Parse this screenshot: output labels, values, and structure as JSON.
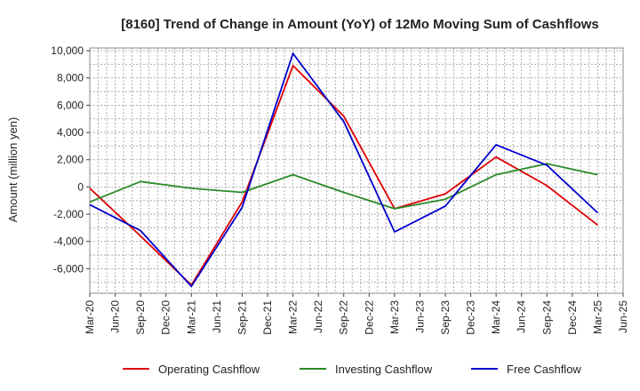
{
  "chart_data": {
    "type": "line",
    "title": "[8160]  Trend of Change in Amount (YoY) of 12Mo Moving Sum of Cashflows",
    "xlabel": "",
    "ylabel": "Amount (million yen)",
    "ylim": [
      -7800,
      10200
    ],
    "yticks": [
      10000,
      8000,
      6000,
      4000,
      2000,
      0,
      -2000,
      -4000,
      -6000
    ],
    "ytick_labels": [
      "10,000",
      "8,000",
      "6,000",
      "4,000",
      "2,000",
      "0",
      "-2,000",
      "-4,000",
      "-6,000"
    ],
    "categories": [
      "Mar-20",
      "Jun-20",
      "Sep-20",
      "Dec-20",
      "Mar-21",
      "Jun-21",
      "Sep-21",
      "Dec-21",
      "Mar-22",
      "Jun-22",
      "Sep-22",
      "Dec-22",
      "Mar-23",
      "Jun-23",
      "Sep-23",
      "Dec-23",
      "Mar-24",
      "Jun-24",
      "Sep-24",
      "Dec-24",
      "Mar-25",
      "Jun-25"
    ],
    "grid": true,
    "legend_position": "bottom",
    "series": [
      {
        "name": "Operating Cashflow",
        "color": "#e00000",
        "x": [
          "Mar-20",
          "Sep-20",
          "Mar-21",
          "Sep-21",
          "Mar-22",
          "Sep-22",
          "Mar-23",
          "Sep-23",
          "Mar-24",
          "Sep-24",
          "Mar-25"
        ],
        "values": [
          -100,
          -3600,
          -7200,
          -1100,
          8900,
          5200,
          -1600,
          -500,
          2200,
          100,
          -2800
        ]
      },
      {
        "name": "Investing Cashflow",
        "color": "#2a8a2a",
        "x": [
          "Mar-20",
          "Sep-20",
          "Mar-21",
          "Sep-21",
          "Mar-22",
          "Sep-22",
          "Mar-23",
          "Sep-23",
          "Mar-24",
          "Sep-24",
          "Mar-25"
        ],
        "values": [
          -1100,
          400,
          -100,
          -400,
          900,
          -400,
          -1600,
          -900,
          900,
          1700,
          900
        ]
      },
      {
        "name": "Free Cashflow",
        "color": "#0000cc",
        "x": [
          "Mar-20",
          "Sep-20",
          "Mar-21",
          "Sep-21",
          "Mar-22",
          "Sep-22",
          "Mar-23",
          "Sep-23",
          "Mar-24",
          "Sep-24",
          "Mar-25"
        ],
        "values": [
          -1300,
          -3200,
          -7300,
          -1500,
          9800,
          4800,
          -3300,
          -1400,
          3100,
          1600,
          -1900
        ]
      }
    ]
  }
}
